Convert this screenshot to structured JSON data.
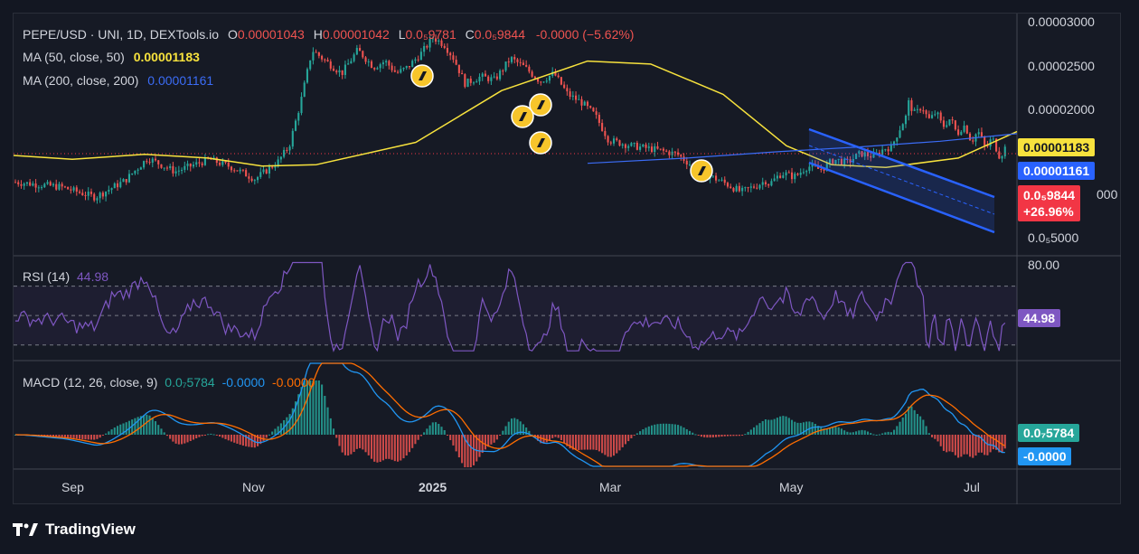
{
  "header": {
    "symbol": "PEPE/USD · UNI, 1D, DEXTools.io",
    "open_label": "O",
    "open": "0.00001043",
    "high_label": "H",
    "high": "0.00001042",
    "low_label": "L",
    "low": "0.0₅9781",
    "close_label": "C",
    "close": "0.0₅9844",
    "change": "-0.0000 (−5.62%)"
  },
  "ma50": {
    "label": "MA (50, close, 50)",
    "value": "0.00001183",
    "color": "#f7e23d"
  },
  "ma200": {
    "label": "MA (200, close, 200)",
    "value": "0.00001161",
    "color": "#3b6cf6"
  },
  "price_axis": {
    "ticks": [
      "0.00003000",
      "0.00002500",
      "0.00002000",
      "0.0₅5000"
    ],
    "partial_tick": "000"
  },
  "price_badges": {
    "ma50": "0.00001183",
    "ma200": "0.00001161",
    "last": "0.0₅9844",
    "last_change": "+26.96%"
  },
  "rsi": {
    "label": "RSI (14)",
    "value": "44.98",
    "axis_tick": "80.00",
    "badge": "44.98",
    "color": "#7e57c2"
  },
  "macd": {
    "label": "MACD (12, 26, close, 9)",
    "hist": "0.0₇5784",
    "macd": "-0.0000",
    "signal": "-0.0000",
    "badge_hist": "0.0₇5784",
    "badge_macd": "-0.0000"
  },
  "time_axis": [
    "Sep",
    "Nov",
    "2025",
    "Mar",
    "May",
    "Jul"
  ],
  "brand": "TradingView",
  "colors": {
    "up": "#26a69a",
    "down": "#ef5350",
    "grid": "#2a2e39",
    "text": "#d1d4dc",
    "channel": "#2962ff"
  },
  "chart_data": [
    {
      "type": "candlestick",
      "title": "PEPE/USD · UNI, 1D, DEXTools.io",
      "x_range": [
        "2024-08-01",
        "2025-07-06"
      ],
      "ylim": [
        4.3e-06,
        3.1e-05
      ],
      "series": [
        {
          "name": "MA (50, close, 50)",
          "x": [
            "2024-08",
            "2024-09",
            "2024-10",
            "2024-11",
            "2024-12",
            "2025-01",
            "2025-02",
            "2025-03",
            "2025-04",
            "2025-05",
            "2025-06",
            "2025-07"
          ],
          "values": [
            9.7e-06,
            8.9e-06,
            9.2e-06,
            9.6e-06,
            1.18e-05,
            1.78e-05,
            2.1e-05,
            1.68e-05,
            1.08e-05,
            9e-06,
            9.4e-06,
            1.18e-05
          ]
        },
        {
          "name": "MA (200, close, 200)",
          "x": [
            "2024-12",
            "2025-01",
            "2025-02",
            "2025-03",
            "2025-04",
            "2025-05",
            "2025-06",
            "2025-07"
          ],
          "values": [
            9.5e-06,
            1.02e-05,
            1.04e-05,
            1.07e-05,
            1.09e-05,
            1.11e-05,
            1.13e-05,
            1.16e-05
          ]
        }
      ],
      "price_approx": {
        "x": [
          "2024-08",
          "2024-09",
          "2024-10",
          "2024-11",
          "2024-12",
          "2025-01",
          "2025-02",
          "2025-03",
          "2025-04",
          "2025-05",
          "2025-06",
          "2025-07"
        ],
        "close": [
          7.8e-06,
          7.1e-06,
          9.1e-06,
          2.05e-05,
          2.35e-05,
          1.85e-05,
          1.04e-05,
          7.4e-06,
          8e-06,
          1.4e-05,
          1.05e-05,
          9.8e-06
        ]
      }
    },
    {
      "type": "line",
      "title": "RSI (14)",
      "last": 44.98,
      "ylim": [
        20,
        90
      ],
      "levels": [
        70,
        30
      ]
    },
    {
      "type": "bar",
      "title": "MACD (12, 26, close, 9)",
      "last_hist": 5.784e-08
    }
  ]
}
